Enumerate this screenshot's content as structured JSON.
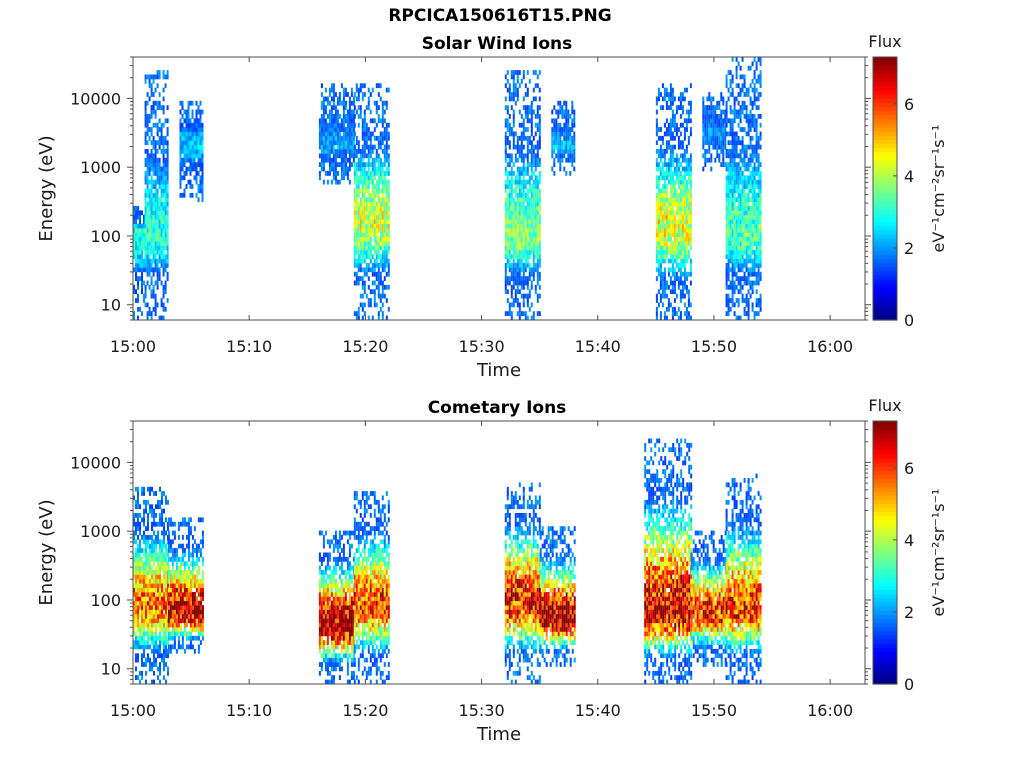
{
  "title": "RPCICA150616T15.PNG",
  "colormap": [
    "#00007f",
    "#0000ff",
    "#007fff",
    "#00ffff",
    "#7fff7f",
    "#ffff00",
    "#ff7f00",
    "#ff0000",
    "#7f0000"
  ],
  "chart_data": [
    {
      "type": "heatmap",
      "title": "Solar Wind Ions",
      "xlabel": "Time",
      "ylabel": "Energy (eV)",
      "y_scale": "log",
      "xlim": [
        "15:00",
        "16:03"
      ],
      "ylim": [
        6,
        40000
      ],
      "x_ticks": [
        "15:00",
        "15:10",
        "15:20",
        "15:30",
        "15:40",
        "15:50",
        "16:00"
      ],
      "y_ticks": [
        10,
        100,
        1000,
        10000
      ],
      "y_tick_labels": [
        "10",
        "100",
        "1000",
        "10000"
      ],
      "colorbar": {
        "label": "Flux",
        "unit_label": "eV⁻¹cm⁻²sr⁻¹s⁻¹",
        "range": [
          0,
          7.3
        ],
        "ticks": [
          0,
          2,
          4,
          6
        ],
        "tick_labels": [
          "0",
          "2",
          "4",
          "6"
        ]
      },
      "bursts": [
        {
          "start": "15:00",
          "end": "15:01",
          "low_e": 6,
          "high_e": 250,
          "peak_e": 100,
          "peak_flux": 3.2
        },
        {
          "start": "15:01",
          "end": "15:03",
          "low_e": 6,
          "high_e": 25000,
          "peak_e": 100,
          "peak_flux": 3.0
        },
        {
          "start": "15:04",
          "end": "15:06",
          "low_e": 300,
          "high_e": 10000,
          "peak_e": 2000,
          "peak_flux": 2.3
        },
        {
          "start": "15:16",
          "end": "15:19",
          "low_e": 500,
          "high_e": 16000,
          "peak_e": 2000,
          "peak_flux": 2.1
        },
        {
          "start": "15:19",
          "end": "15:22",
          "low_e": 6,
          "high_e": 15000,
          "peak_e": 150,
          "peak_flux": 4.2
        },
        {
          "start": "15:32",
          "end": "15:35",
          "low_e": 6,
          "high_e": 25000,
          "peak_e": 100,
          "peak_flux": 3.6
        },
        {
          "start": "15:36",
          "end": "15:38",
          "low_e": 700,
          "high_e": 9000,
          "peak_e": 2000,
          "peak_flux": 2.2
        },
        {
          "start": "15:45",
          "end": "15:48",
          "low_e": 6,
          "high_e": 15000,
          "peak_e": 120,
          "peak_flux": 4.4
        },
        {
          "start": "15:49",
          "end": "15:51",
          "low_e": 800,
          "high_e": 12000,
          "peak_e": 3000,
          "peak_flux": 2.0
        },
        {
          "start": "15:51",
          "end": "15:54",
          "low_e": 6,
          "high_e": 35000,
          "peak_e": 100,
          "peak_flux": 3.3
        }
      ]
    },
    {
      "type": "heatmap",
      "title": "Cometary Ions",
      "xlabel": "Time",
      "ylabel": "Energy (eV)",
      "y_scale": "log",
      "xlim": [
        "15:00",
        "16:03"
      ],
      "ylim": [
        6,
        40000
      ],
      "x_ticks": [
        "15:00",
        "15:10",
        "15:20",
        "15:30",
        "15:40",
        "15:50",
        "16:00"
      ],
      "y_ticks": [
        10,
        100,
        1000,
        10000
      ],
      "y_tick_labels": [
        "10",
        "100",
        "1000",
        "10000"
      ],
      "colorbar": {
        "label": "Flux",
        "unit_label": "eV⁻¹cm⁻²sr⁻¹s⁻¹",
        "range": [
          0,
          7.3
        ],
        "ticks": [
          0,
          2,
          4,
          6
        ],
        "tick_labels": [
          "0",
          "2",
          "4",
          "6"
        ]
      },
      "bursts": [
        {
          "start": "15:00",
          "end": "15:03",
          "low_e": 6,
          "high_e": 4000,
          "peak_e": 80,
          "peak_flux": 5.5
        },
        {
          "start": "15:03",
          "end": "15:06",
          "low_e": 15,
          "high_e": 1500,
          "peak_e": 60,
          "peak_flux": 7.0
        },
        {
          "start": "15:16",
          "end": "15:19",
          "low_e": 6,
          "high_e": 1000,
          "peak_e": 40,
          "peak_flux": 7.2
        },
        {
          "start": "15:19",
          "end": "15:22",
          "low_e": 6,
          "high_e": 3500,
          "peak_e": 80,
          "peak_flux": 6.0
        },
        {
          "start": "15:32",
          "end": "15:35",
          "low_e": 6,
          "high_e": 5000,
          "peak_e": 90,
          "peak_flux": 6.3
        },
        {
          "start": "15:35",
          "end": "15:38",
          "low_e": 10,
          "high_e": 1100,
          "peak_e": 50,
          "peak_flux": 7.2
        },
        {
          "start": "15:44",
          "end": "15:48",
          "low_e": 6,
          "high_e": 22000,
          "peak_e": 60,
          "peak_flux": 6.7
        },
        {
          "start": "15:48",
          "end": "15:51",
          "low_e": 10,
          "high_e": 1000,
          "peak_e": 60,
          "peak_flux": 6.2
        },
        {
          "start": "15:51",
          "end": "15:54",
          "low_e": 6,
          "high_e": 6000,
          "peak_e": 70,
          "peak_flux": 6.0
        }
      ]
    }
  ]
}
